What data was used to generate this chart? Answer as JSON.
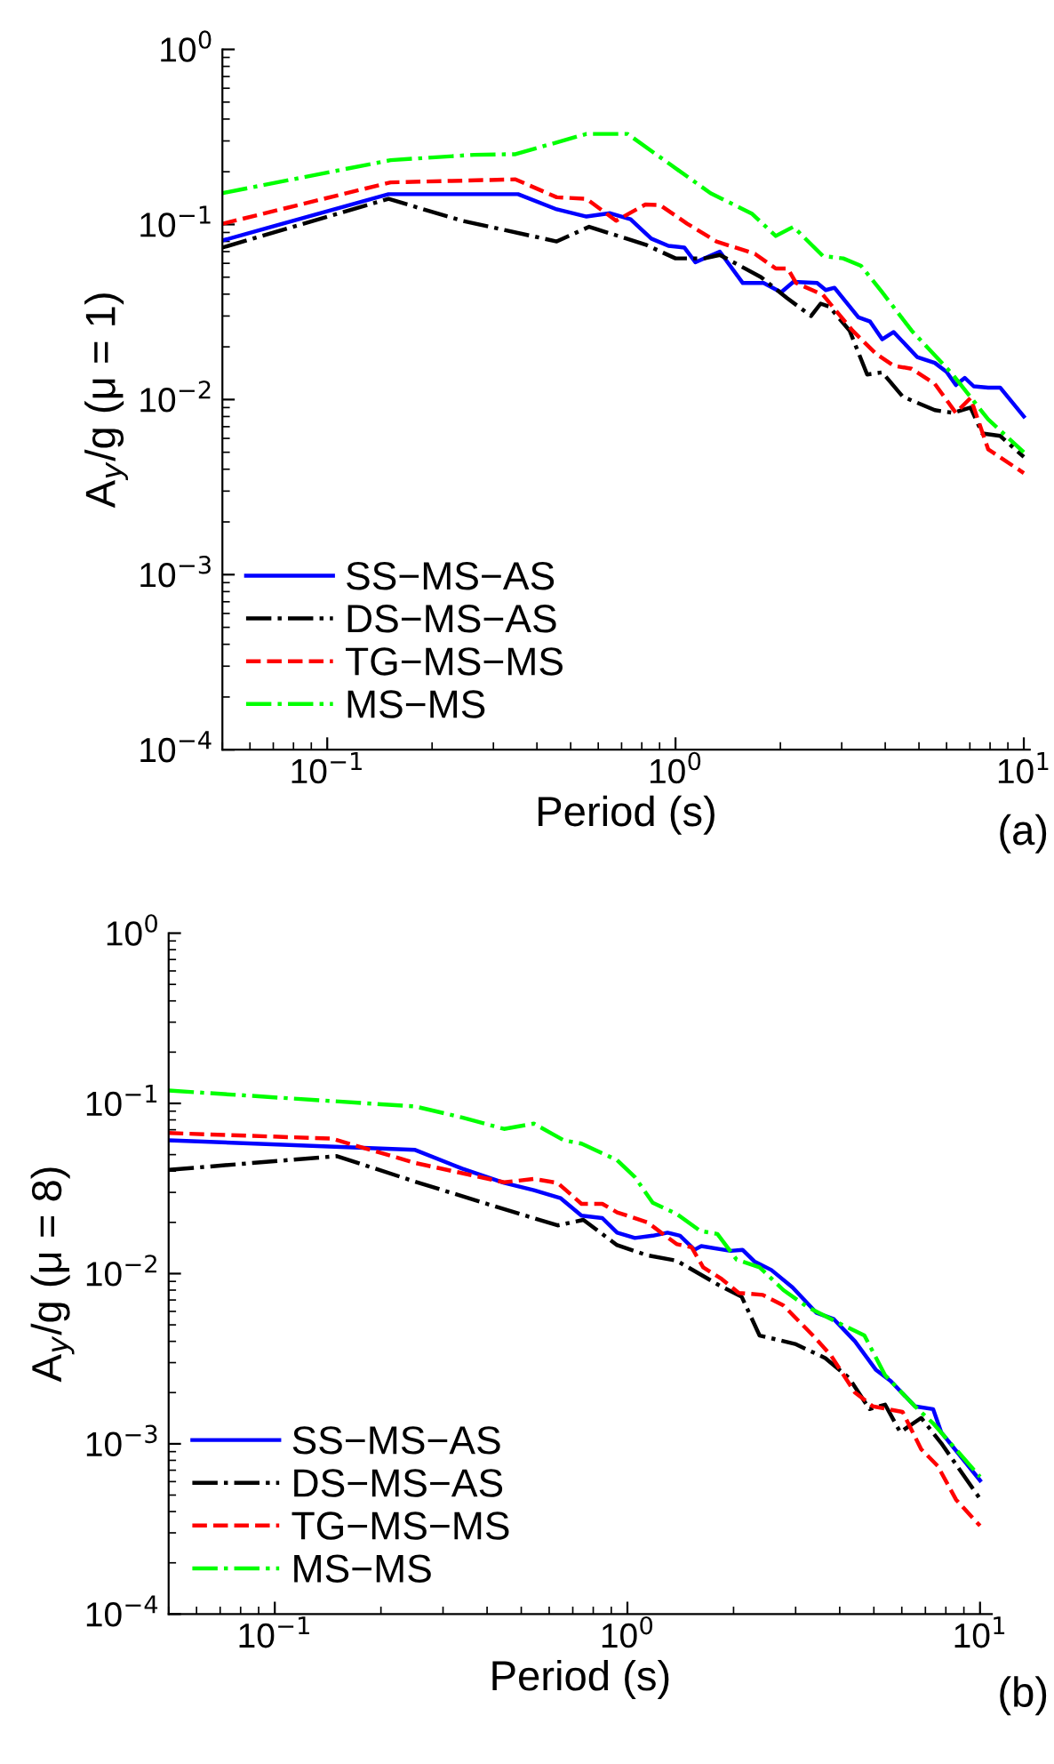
{
  "chart_data": [
    {
      "type": "line",
      "xlabel": "Period (s)",
      "ylabel": "A$_{y}$/g (μ = 1)",
      "annotations": [
        "(a)"
      ],
      "log": "xy",
      "legend": "bottom left",
      "grid": false,
      "xlim": [
        0.05,
        10.4
      ],
      "ylim": [
        0.0001,
        1
      ],
      "xticks": [
        {
          "value": 0.1,
          "label": "10$^{−1}$"
        },
        {
          "value": 1,
          "label": "10$^{0}$"
        },
        {
          "value": 10,
          "label": "10$^{1}$"
        }
      ],
      "yticks": [
        {
          "value": 0.0001,
          "label": "10$^{−4}$"
        },
        {
          "value": 0.001,
          "label": "10$^{−3}$"
        },
        {
          "value": 0.01,
          "label": "10$^{−2}$"
        },
        {
          "value": 0.1,
          "label": "10$^{−1}$"
        },
        {
          "value": 1,
          "label": "10$^{0}$"
        }
      ],
      "series": [
        {
          "name": "SS−MS−AS",
          "color": "#0000ff",
          "line_style": "solid",
          "x": [
            0.05,
            0.15,
            0.353,
            0.456,
            0.555,
            0.649,
            0.743,
            0.852,
            0.954,
            1.06,
            1.14,
            1.34,
            1.56,
            1.79,
            2.01,
            2.18,
            2.55,
            2.7,
            2.86,
            3.35,
            3.62,
            3.92,
            4.23,
            4.94,
            5.55,
            6.0,
            6.38,
            6.77,
            7.18,
            7.9,
            8.55,
            10
          ],
          "values": [
            0.081,
            0.149,
            0.149,
            0.122,
            0.111,
            0.116,
            0.107,
            0.083,
            0.0755,
            0.0738,
            0.0608,
            0.07,
            0.0463,
            0.0463,
            0.041,
            0.047,
            0.0463,
            0.0422,
            0.0435,
            0.0295,
            0.0279,
            0.0221,
            0.0243,
            0.0175,
            0.0162,
            0.0144,
            0.0121,
            0.0133,
            0.0119,
            0.0117,
            0.0117,
            0.008
          ]
        },
        {
          "name": "DS−MS−AS",
          "color": "#000000",
          "line_style": "dashdot",
          "x": [
            0.05,
            0.15,
            0.244,
            0.456,
            0.565,
            0.819,
            1.0,
            1.21,
            1.34,
            1.76,
            2.09,
            2.45,
            2.61,
            2.76,
            3.16,
            3.55,
            3.92,
            4.49,
            5.55,
            6.25,
            7.03,
            7.6,
            8.55,
            10
          ],
          "values": [
            0.0738,
            0.14,
            0.105,
            0.08,
            0.097,
            0.0768,
            0.064,
            0.064,
            0.067,
            0.05,
            0.038,
            0.03,
            0.0353,
            0.034,
            0.0248,
            0.0139,
            0.0143,
            0.0104,
            0.0087,
            0.0084,
            0.009,
            0.0064,
            0.0062,
            0.0047
          ]
        },
        {
          "name": "TG−MS−MS",
          "color": "#ff0000",
          "line_style": "dashed",
          "x": [
            0.05,
            0.152,
            0.347,
            0.456,
            0.555,
            0.675,
            0.819,
            0.903,
            1.08,
            1.31,
            1.69,
            1.94,
            2.1,
            2.22,
            2.65,
            3.22,
            3.77,
            4.23,
            4.76,
            5.55,
            6.38,
            7.03,
            7.9,
            10
          ],
          "values": [
            0.101,
            0.174,
            0.181,
            0.143,
            0.14,
            0.105,
            0.13,
            0.129,
            0.101,
            0.08,
            0.068,
            0.056,
            0.056,
            0.0463,
            0.0396,
            0.0248,
            0.0182,
            0.0156,
            0.015,
            0.0123,
            0.0084,
            0.0102,
            0.0052,
            0.0038
          ]
        },
        {
          "name": "MS−MS",
          "color": "#00ff00",
          "line_style": "dashdot",
          "x": [
            0.05,
            0.152,
            0.264,
            0.347,
            0.555,
            0.728,
            1.26,
            1.66,
            1.94,
            2.18,
            2.65,
            3.03,
            3.41,
            3.92,
            4.76,
            6.25,
            7.9,
            10
          ],
          "values": [
            0.151,
            0.233,
            0.25,
            0.252,
            0.329,
            0.329,
            0.151,
            0.115,
            0.086,
            0.097,
            0.066,
            0.064,
            0.058,
            0.041,
            0.0248,
            0.0139,
            0.0077,
            0.005
          ]
        }
      ]
    },
    {
      "type": "line",
      "xlabel": "Period (s)",
      "ylabel": "A$_{y}$/g (μ = 8)",
      "annotations": [
        "(b)"
      ],
      "log": "xy",
      "legend": "bottom left",
      "grid": false,
      "xlim": [
        0.05,
        10.8
      ],
      "ylim": [
        0.0001,
        1
      ],
      "xticks": [
        {
          "value": 0.1,
          "label": "10$^{−1}$"
        },
        {
          "value": 1,
          "label": "10$^{0}$"
        },
        {
          "value": 10,
          "label": "10$^{1}$"
        }
      ],
      "yticks": [
        {
          "value": 0.0001,
          "label": "10$^{−4}$"
        },
        {
          "value": 0.001,
          "label": "10$^{−3}$"
        },
        {
          "value": 0.01,
          "label": "10$^{−2}$"
        },
        {
          "value": 0.1,
          "label": "10$^{−1}$"
        },
        {
          "value": 1,
          "label": "10$^{0}$"
        }
      ],
      "series": [
        {
          "name": "SS−MS−AS",
          "color": "#0000ff",
          "line_style": "solid",
          "x": [
            0.05,
            0.25,
            0.34,
            0.447,
            0.543,
            0.647,
            0.741,
            0.849,
            0.935,
            1.05,
            1.18,
            1.3,
            1.41,
            1.55,
            1.62,
            1.96,
            2.12,
            2.29,
            2.56,
            2.94,
            3.43,
            3.85,
            4.42,
            5.06,
            5.58,
            6.54,
            7.36,
            7.76,
            10
          ],
          "values": [
            0.0607,
            0.0533,
            0.0414,
            0.0341,
            0.0309,
            0.0277,
            0.0219,
            0.0212,
            0.0174,
            0.0162,
            0.0167,
            0.0174,
            0.0167,
            0.0138,
            0.0145,
            0.0136,
            0.0138,
            0.0118,
            0.0105,
            0.0083,
            0.0059,
            0.0054,
            0.004,
            0.00273,
            0.00234,
            0.00166,
            0.0016,
            0.00117,
            0.00061
          ]
        },
        {
          "name": "DS−MS−AS",
          "color": "#000000",
          "line_style": "dashdot",
          "x": [
            0.05,
            0.15,
            0.25,
            0.43,
            0.634,
            0.75,
            0.935,
            1.14,
            1.38,
            1.81,
            2.11,
            2.37,
            2.99,
            3.64,
            4.25,
            4.86,
            5.38,
            5.94,
            6.81,
            7.76,
            10
          ],
          "values": [
            0.0407,
            0.049,
            0.0347,
            0.0245,
            0.0192,
            0.0207,
            0.0147,
            0.0128,
            0.0119,
            0.0086,
            0.0073,
            0.00433,
            0.00386,
            0.00319,
            0.00244,
            0.0016,
            0.0017,
            0.00117,
            0.00142,
            0.00101,
            0.000475
          ]
        },
        {
          "name": "TG−MS−MS",
          "color": "#ff0000",
          "line_style": "dashed",
          "x": [
            0.05,
            0.145,
            0.25,
            0.447,
            0.543,
            0.634,
            0.741,
            0.849,
            0.935,
            1.14,
            1.38,
            1.52,
            1.64,
            1.85,
            2.07,
            2.42,
            2.77,
            3.37,
            3.78,
            4.42,
            4.97,
            6.03,
            6.81,
            7.59,
            8.55,
            10
          ],
          "values": [
            0.067,
            0.0621,
            0.0447,
            0.0344,
            0.036,
            0.0341,
            0.0257,
            0.0257,
            0.0229,
            0.02,
            0.0149,
            0.0143,
            0.0109,
            0.0093,
            0.0077,
            0.0075,
            0.0065,
            0.0043,
            0.0033,
            0.002,
            0.00166,
            0.00154,
            0.00093,
            0.00074,
            0.00047,
            0.00033
          ]
        },
        {
          "name": "MS−MS",
          "color": "#00ff00",
          "line_style": "dashdot",
          "x": [
            0.05,
            0.25,
            0.34,
            0.447,
            0.543,
            0.66,
            0.741,
            0.935,
            1.05,
            1.18,
            1.38,
            1.61,
            1.8,
            2.04,
            2.37,
            2.77,
            3.24,
            4.03,
            4.7,
            5.38,
            6.54,
            7.36,
            10
          ],
          "values": [
            0.119,
            0.096,
            0.0826,
            0.0708,
            0.076,
            0.0607,
            0.058,
            0.0464,
            0.0369,
            0.0261,
            0.0224,
            0.0178,
            0.0171,
            0.0121,
            0.0109,
            0.008,
            0.00636,
            0.00505,
            0.00433,
            0.00253,
            0.00166,
            0.00132,
            0.00064
          ]
        }
      ]
    }
  ]
}
